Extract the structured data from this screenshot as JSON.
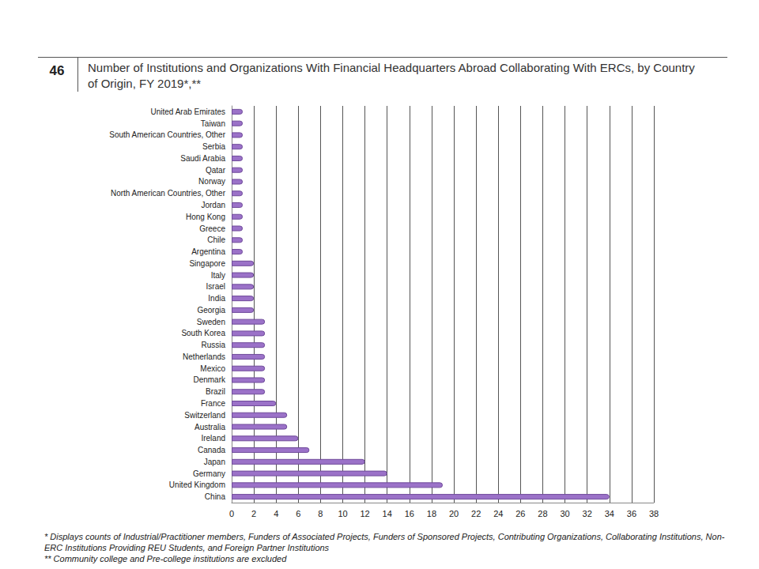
{
  "chart_data": {
    "type": "bar",
    "orientation": "horizontal",
    "figure_number": "46",
    "title": "Number of Institutions and Organizations With Financial Headquarters Abroad Collaborating With ERCs, by Country of Origin, FY 2019*,**",
    "notes": [
      "* Displays counts of Industrial/Practitioner members, Funders of Associated Projects, Funders of Sponsored Projects, Contributing Organizations, Collaborating Institutions, Non-ERC Institutions Providing REU Students, and Foreign Partner Institutions",
      "** Community college and Pre-college institutions are excluded"
    ],
    "categories": [
      "United Arab Emirates",
      "Taiwan",
      "South American Countries, Other",
      "Serbia",
      "Saudi Arabia",
      "Qatar",
      "Norway",
      "North American Countries, Other",
      "Jordan",
      "Hong Kong",
      "Greece",
      "Chile",
      "Argentina",
      "Singapore",
      "Italy",
      "Israel",
      "India",
      "Georgia",
      "Sweden",
      "South Korea",
      "Russia",
      "Netherlands",
      "Mexico",
      "Denmark",
      "Brazil",
      "France",
      "Switzerland",
      "Australia",
      "Ireland",
      "Canada",
      "Japan",
      "Germany",
      "United Kingdom",
      "China"
    ],
    "values": [
      1,
      1,
      1,
      1,
      1,
      1,
      1,
      1,
      1,
      1,
      1,
      1,
      1,
      2,
      2,
      2,
      2,
      2,
      3,
      3,
      3,
      3,
      3,
      3,
      3,
      4,
      5,
      5,
      6,
      7,
      12,
      14,
      19,
      34
    ],
    "color": "#9b72c8",
    "xlim": [
      0,
      38
    ],
    "xticks": [
      0,
      2,
      4,
      6,
      8,
      10,
      12,
      14,
      16,
      18,
      20,
      22,
      24,
      26,
      28,
      30,
      32,
      34,
      36,
      38
    ],
    "grid": true
  }
}
